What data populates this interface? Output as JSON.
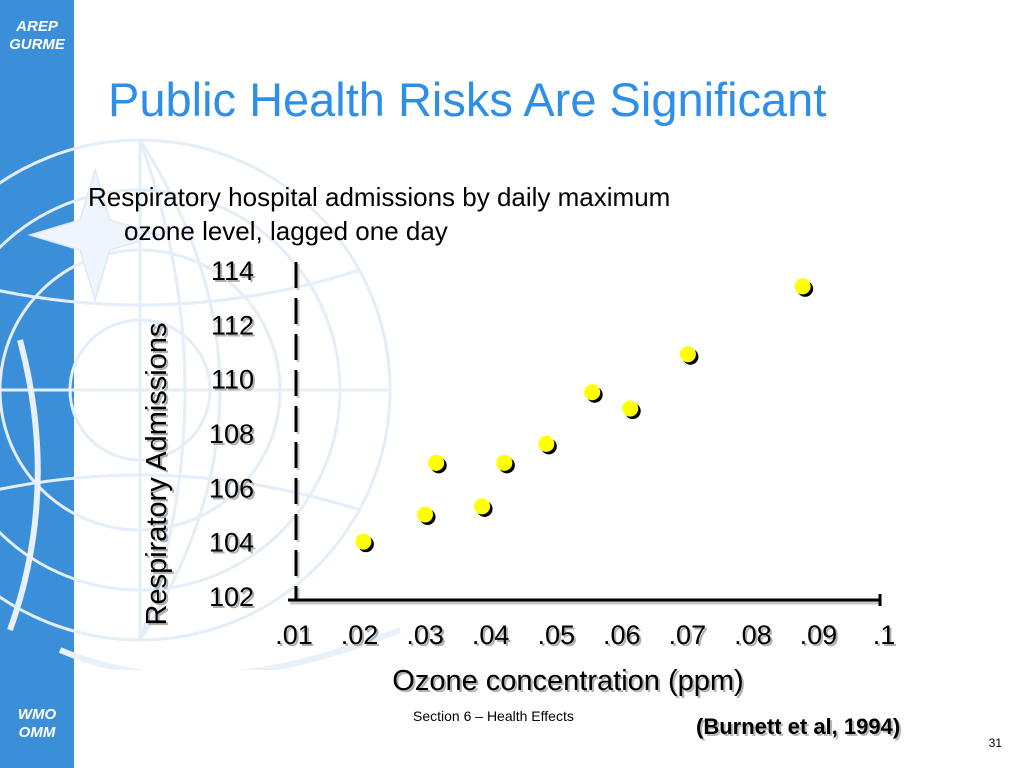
{
  "slide": {
    "title": "Public Health Risks Are Significant",
    "subtitle_line1": "Respiratory hospital admissions by daily maximum",
    "subtitle_line2": "ozone level, lagged one day",
    "section_label": "Section 6 – Health Effects",
    "page_number": "31",
    "citation": "(Burnett et al, 1994)",
    "brand_top_line1": "AREP",
    "brand_top_line2": "GURME",
    "brand_bottom_line1": "WMO",
    "brand_bottom_line2": "OMM"
  },
  "colors": {
    "title": "#2f8fe8",
    "sidebar": "#3a8fd8",
    "marker_fill": "#ffff00",
    "marker_shadow": "#000000",
    "axis": "#000000",
    "emblem": "#eaf3fb"
  },
  "chart_data": {
    "type": "scatter",
    "title": "",
    "xlabel": "Ozone concentration (ppm)",
    "ylabel": "Respiratory Admissions",
    "x_ticks": [
      ".01",
      ".02",
      ".03",
      ".04",
      ".05",
      ".06",
      ".07",
      ".08",
      ".09",
      ".1"
    ],
    "y_ticks": [
      "102",
      "104",
      "106",
      "108",
      "110",
      "112",
      "114"
    ],
    "xlim": [
      0.01,
      0.1
    ],
    "ylim": [
      102,
      114
    ],
    "grid": false,
    "legend": "none",
    "series": [
      {
        "points": [
          {
            "x": 0.0212,
            "y": 104.0
          },
          {
            "x": 0.0306,
            "y": 105.0
          },
          {
            "x": 0.0323,
            "y": 106.9
          },
          {
            "x": 0.0393,
            "y": 105.3
          },
          {
            "x": 0.0427,
            "y": 106.9
          },
          {
            "x": 0.0491,
            "y": 107.6
          },
          {
            "x": 0.0561,
            "y": 109.5
          },
          {
            "x": 0.0619,
            "y": 108.9
          },
          {
            "x": 0.0707,
            "y": 110.9
          },
          {
            "x": 0.0882,
            "y": 113.4
          }
        ]
      }
    ]
  }
}
